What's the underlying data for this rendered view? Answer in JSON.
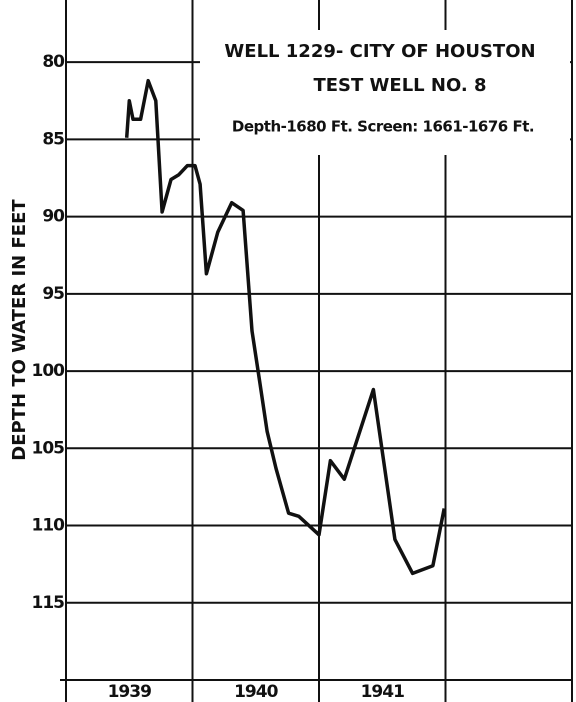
{
  "chart_data": {
    "type": "line",
    "title": "WELL 1229- CITY OF HOUSTON",
    "subtitle": "TEST WELL NO. 8",
    "annotation": "Depth-1680 Ft.  Screen: 1661-1676 Ft.",
    "y_label": "DEPTH TO WATER IN FEET",
    "year_labels": [
      "1939",
      "1940",
      "1941"
    ],
    "x": [
      1939.48,
      1939.5,
      1939.53,
      1939.59,
      1939.65,
      1939.71,
      1939.76,
      1939.83,
      1939.89,
      1939.96,
      1940.02,
      1940.06,
      1940.11,
      1940.2,
      1940.31,
      1940.4,
      1940.47,
      1940.53,
      1940.59,
      1940.66,
      1940.76,
      1940.84,
      1941.0,
      1941.09,
      1941.2,
      1941.43,
      1941.6,
      1941.74,
      1941.9,
      1941.99
    ],
    "series": [
      {
        "name": "Depth to water",
        "color": "#111111",
        "values": [
          84.9,
          82.5,
          83.7,
          83.7,
          81.2,
          82.5,
          89.7,
          87.6,
          87.3,
          86.7,
          86.7,
          87.9,
          93.7,
          91.0,
          89.1,
          89.6,
          97.4,
          100.6,
          103.9,
          106.3,
          109.2,
          109.4,
          110.6,
          105.8,
          107.0,
          101.2,
          110.9,
          113.1,
          112.6,
          108.9
        ]
      }
    ],
    "xlim": [
      1939,
      1943
    ],
    "xticks": [
      1939,
      1940,
      1941,
      1942,
      1943
    ],
    "ylim": [
      76.3,
      120
    ],
    "yticks": [
      80,
      85,
      90,
      95,
      100,
      105,
      110,
      115
    ],
    "y_inverted": true,
    "grid": true
  }
}
